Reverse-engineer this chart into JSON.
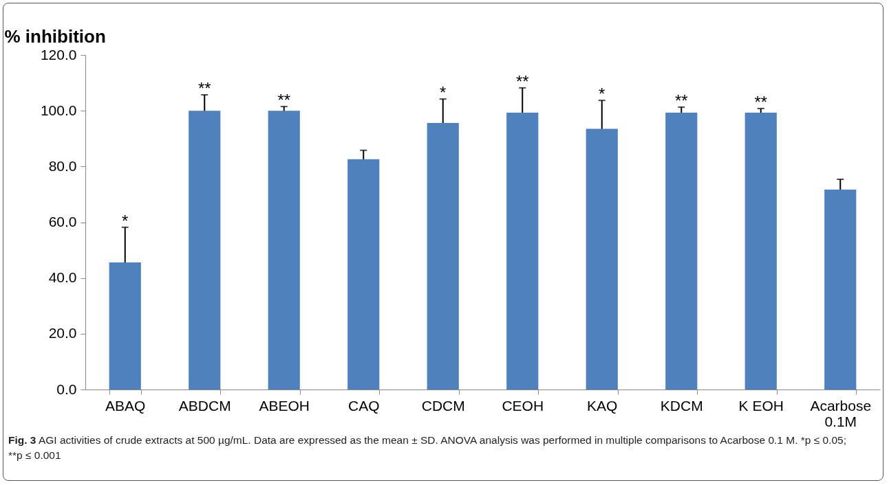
{
  "chart_data": {
    "type": "bar",
    "ylabel": "% inhibition",
    "categories": [
      "ABAQ",
      "ABDCM",
      "ABEOH",
      "CAQ",
      "CDCM",
      "CEOH",
      "KAQ",
      "KDCM",
      "K EOH",
      "Acarbose 0.1M"
    ],
    "values": [
      45.6,
      100,
      100,
      82.6,
      95.6,
      99.3,
      93.5,
      99.3,
      99.3,
      71.7
    ],
    "errors": [
      12.6,
      5.7,
      1.5,
      3.2,
      8.6,
      8.9,
      10.2,
      2,
      1.5,
      3.7
    ],
    "color": "#4f81bd",
    "ylim": [
      0,
      120
    ],
    "yticks": [
      {
        "value": 0,
        "label": "0.0"
      },
      {
        "value": 20,
        "label": "20.0"
      },
      {
        "value": 40,
        "label": "40.0"
      },
      {
        "value": 60,
        "label": "60.0"
      },
      {
        "value": 80,
        "label": "80.0"
      },
      {
        "value": 100,
        "label": "100.0"
      },
      {
        "value": 120,
        "label": "120.0"
      }
    ],
    "grid": false,
    "annotations": [
      {
        "text": "*",
        "x": "ABAQ",
        "y": 58.2
      },
      {
        "text": "**",
        "x": "ABDCM",
        "y": 105.7
      },
      {
        "text": "**",
        "x": "ABEOH",
        "y": 101.5
      },
      {
        "text": "*",
        "x": "CDCM",
        "y": 104.2
      },
      {
        "text": "**",
        "x": "CEOH",
        "y": 108.2
      },
      {
        "text": "*",
        "x": "KAQ",
        "y": 103.7
      },
      {
        "text": "**",
        "x": "KDCM",
        "y": 101.3
      },
      {
        "text": "**",
        "x": "K EOH",
        "y": 100.8
      },
      "Fig. 3 AGI activities of crude extracts at 500 µg/mL. Data are expressed as the mean ± SD. ANOVA analysis was performed in multiple comparisons to Acarbose 0.1 M. *p ≤ 0.05; **p ≤ 0.001"
    ]
  }
}
